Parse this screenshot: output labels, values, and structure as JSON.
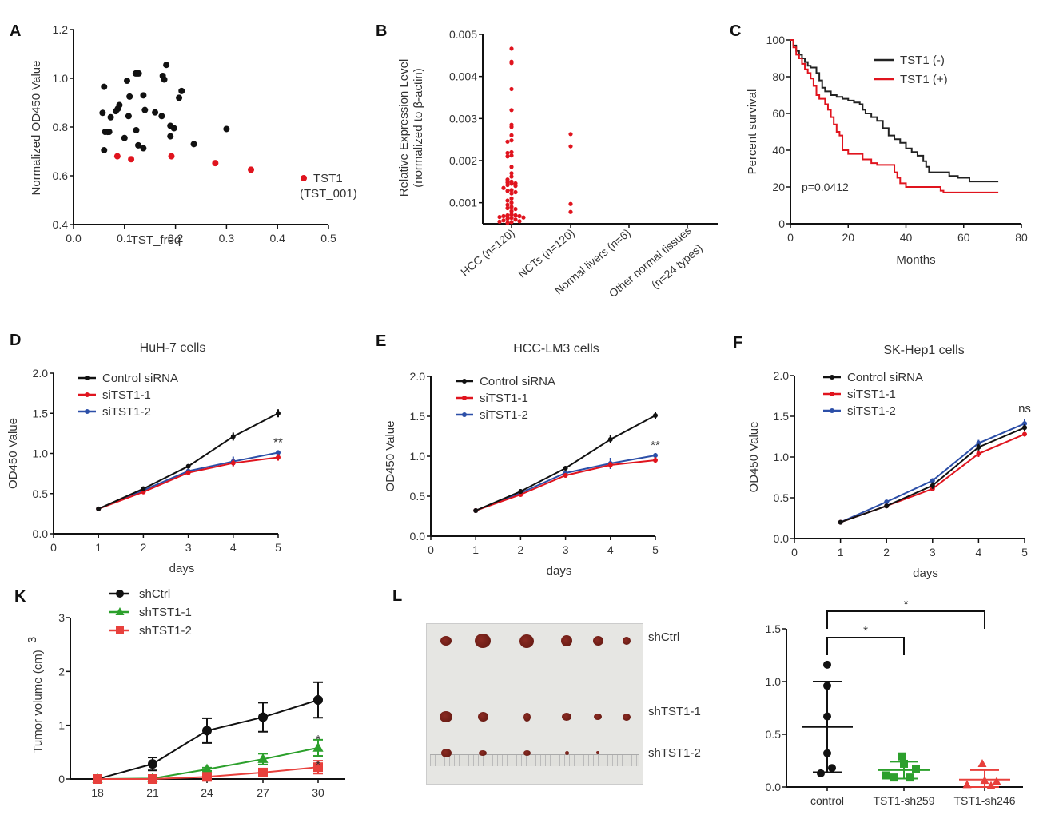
{
  "panels": {
    "A": "A",
    "B": "B",
    "C": "C",
    "D": "D",
    "E": "E",
    "F": "F",
    "K": "K",
    "L": "L"
  },
  "colors": {
    "black": "#111111",
    "red": "#e0141e",
    "blue": "#2c4fa8",
    "green": "#2ca02c",
    "lightred": "#e8403c"
  },
  "photo_labels": [
    "shCtrl",
    "shTST1-1",
    "shTST1-2"
  ],
  "chart_data": [
    {
      "id": "A",
      "type": "scatter",
      "xlabel": "TST_freq",
      "ylabel": "Normalized OD450 Value",
      "xlim": [
        0.0,
        0.5
      ],
      "ylim": [
        0.4,
        1.2
      ],
      "xticks": [
        "0.0",
        "0.1",
        "0.2",
        "0.3",
        "0.4",
        "0.5"
      ],
      "yticks": [
        "0.4",
        "0.6",
        "0.8",
        "1.0",
        "1.2"
      ],
      "legend": {
        "label": "TST1",
        "sublabel": "(TST_001)",
        "position": "right"
      },
      "series": [
        {
          "name": "other",
          "color": "#111111",
          "points": [
            [
              0.06,
              0.965
            ],
            [
              0.057,
              0.858
            ],
            [
              0.062,
              0.78
            ],
            [
              0.067,
              0.78
            ],
            [
              0.07,
              0.78
            ],
            [
              0.073,
              0.84
            ],
            [
              0.06,
              0.705
            ],
            [
              0.083,
              0.865
            ],
            [
              0.087,
              0.875
            ],
            [
              0.09,
              0.89
            ],
            [
              0.1,
              0.755
            ],
            [
              0.105,
              0.99
            ],
            [
              0.108,
              0.845
            ],
            [
              0.11,
              0.925
            ],
            [
              0.122,
              1.02
            ],
            [
              0.125,
              1.02
            ],
            [
              0.128,
              1.02
            ],
            [
              0.123,
              0.787
            ],
            [
              0.127,
              0.725
            ],
            [
              0.137,
              0.713
            ],
            [
              0.137,
              0.93
            ],
            [
              0.14,
              0.87
            ],
            [
              0.16,
              0.86
            ],
            [
              0.173,
              0.845
            ],
            [
              0.175,
              1.01
            ],
            [
              0.178,
              0.995
            ],
            [
              0.182,
              1.055
            ],
            [
              0.19,
              0.805
            ],
            [
              0.19,
              0.762
            ],
            [
              0.197,
              0.795
            ],
            [
              0.207,
              0.92
            ],
            [
              0.212,
              0.948
            ],
            [
              0.236,
              0.73
            ],
            [
              0.3,
              0.792
            ]
          ]
        },
        {
          "name": "TST1",
          "color": "#e0141e",
          "points": [
            [
              0.086,
              0.68
            ],
            [
              0.113,
              0.668
            ],
            [
              0.192,
              0.68
            ],
            [
              0.278,
              0.652
            ],
            [
              0.348,
              0.625
            ]
          ]
        }
      ]
    },
    {
      "id": "B",
      "type": "scatter",
      "ylabel": "Relative Expression Level",
      "ylabel2": "(normalized to β-actin)",
      "ylim": [
        0.0005,
        0.005
      ],
      "yticks": [
        "0.001",
        "0.002",
        "0.003",
        "0.004",
        "0.005"
      ],
      "categories": [
        "HCC (n=120)",
        "NCTs (n=120)",
        "Normal livers (n=6)",
        "Other normal tissues",
        "(n=24 types)"
      ],
      "series": [
        {
          "name": "HCC (n=120)",
          "color": "#e0141e",
          "values": [
            0.00466,
            0.00435,
            0.00432,
            0.0037,
            0.0032,
            0.00285,
            0.0028,
            0.0026,
            0.00248,
            0.00245,
            0.0022,
            0.00218,
            0.00212,
            0.0021,
            0.00185,
            0.0017,
            0.00162,
            0.00155,
            0.0015,
            0.00148,
            0.00146,
            0.00145,
            0.00142,
            0.0014,
            0.00135,
            0.0013,
            0.00128,
            0.00125,
            0.00122,
            0.0011,
            0.00105,
            0.001,
            0.00095,
            0.0009,
            0.00087,
            0.00085,
            0.0008,
            0.00072,
            0.0007,
            0.0007,
            0.00068,
            0.00068,
            0.00066,
            0.00065,
            0.00064,
            0.00062,
            0.0006,
            0.00058,
            0.00056,
            0.00055,
            0.00054,
            0.00052
          ]
        },
        {
          "name": "NCTs (n=120)",
          "color": "#e0141e",
          "values": [
            0.00263,
            0.00234,
            0.00097,
            0.00078
          ]
        },
        {
          "name": "Normal livers (n=6)",
          "color": "#e0141e",
          "values": []
        },
        {
          "name": "Other normal tissues (n=24 types)",
          "color": "#e0141e",
          "values": []
        }
      ]
    },
    {
      "id": "C",
      "type": "line",
      "xlabel": "Months",
      "ylabel": "Percent survival",
      "xlim": [
        0,
        80
      ],
      "ylim": [
        0,
        100
      ],
      "xticks": [
        "0",
        "20",
        "40",
        "60",
        "80"
      ],
      "yticks": [
        "0",
        "20",
        "40",
        "60",
        "80",
        "100"
      ],
      "annotation": "p=0.0412",
      "legend_position": "top-right",
      "series": [
        {
          "name": "TST1  (-)",
          "color": "#222222",
          "x": [
            0,
            1,
            2,
            3,
            4,
            5,
            6,
            7,
            8,
            9,
            10,
            11,
            12,
            14,
            16,
            18,
            20,
            22,
            24,
            25,
            26,
            28,
            30,
            32,
            34,
            36,
            38,
            40,
            42,
            44,
            46,
            47,
            48,
            50,
            52,
            55,
            58,
            62,
            72
          ],
          "y": [
            100,
            97,
            94,
            92,
            90,
            88,
            86,
            85,
            85,
            82,
            78,
            74,
            72,
            70,
            69,
            68,
            67,
            66,
            65,
            62,
            60,
            58,
            56,
            52,
            48,
            46,
            44,
            41,
            39,
            37,
            34,
            31,
            28,
            28,
            28,
            26,
            25,
            23,
            23
          ]
        },
        {
          "name": "TST1  (+)",
          "color": "#e0141e",
          "x": [
            0,
            1,
            2,
            3,
            4,
            5,
            6,
            7,
            8,
            9,
            10,
            12,
            13,
            14,
            15,
            16,
            17,
            18,
            20,
            24,
            25,
            28,
            30,
            35,
            36,
            37,
            38,
            40,
            45,
            50,
            52,
            53,
            60,
            72
          ],
          "y": [
            100,
            96,
            92,
            90,
            87,
            84,
            82,
            79,
            75,
            70,
            68,
            65,
            62,
            58,
            54,
            50,
            48,
            40,
            38,
            38,
            35,
            33,
            32,
            32,
            28,
            25,
            22,
            20,
            20,
            20,
            18,
            17,
            17,
            17
          ]
        }
      ]
    },
    {
      "id": "D",
      "type": "line",
      "title": "HuH-7 cells",
      "xlabel": "days",
      "ylabel": "OD450 Value",
      "xlim": [
        0,
        5
      ],
      "ylim": [
        0,
        2.0
      ],
      "xticks": [
        "0",
        "1",
        "2",
        "3",
        "4",
        "5"
      ],
      "yticks": [
        "0.0",
        "0.5",
        "1.0",
        "1.5",
        "2.0"
      ],
      "annotation": "**",
      "x": [
        1,
        2,
        3,
        4,
        5
      ],
      "series": [
        {
          "name": "Control siRNA",
          "color": "#111111",
          "values": [
            0.31,
            0.56,
            0.84,
            1.21,
            1.5
          ],
          "err": [
            0.01,
            0.03,
            0.02,
            0.05,
            0.05
          ]
        },
        {
          "name": "siTST1-1",
          "color": "#e0141e",
          "values": [
            0.31,
            0.52,
            0.76,
            0.88,
            0.95
          ],
          "err": [
            0.01,
            0.02,
            0.03,
            0.04,
            0.04
          ]
        },
        {
          "name": "siTST1-2",
          "color": "#2c4fa8",
          "values": [
            0.31,
            0.54,
            0.78,
            0.9,
            1.01
          ],
          "err": [
            0.01,
            0.02,
            0.02,
            0.06,
            0.03
          ]
        }
      ]
    },
    {
      "id": "E",
      "type": "line",
      "title": "HCC-LM3 cells",
      "xlabel": "days",
      "ylabel": "OD450 Value",
      "xlim": [
        0,
        5
      ],
      "ylim": [
        0,
        2.0
      ],
      "xticks": [
        "0",
        "1",
        "2",
        "3",
        "4",
        "5"
      ],
      "yticks": [
        "0.0",
        "0.5",
        "1.0",
        "1.5",
        "2.0"
      ],
      "annotation": "**",
      "x": [
        1,
        2,
        3,
        4,
        5
      ],
      "series": [
        {
          "name": "Control siRNA",
          "color": "#111111",
          "values": [
            0.32,
            0.56,
            0.85,
            1.21,
            1.51
          ],
          "err": [
            0.01,
            0.03,
            0.02,
            0.05,
            0.05
          ]
        },
        {
          "name": "siTST1-1",
          "color": "#e0141e",
          "values": [
            0.32,
            0.52,
            0.76,
            0.89,
            0.95
          ],
          "err": [
            0.01,
            0.02,
            0.03,
            0.04,
            0.04
          ]
        },
        {
          "name": "siTST1-2",
          "color": "#2c4fa8",
          "values": [
            0.32,
            0.54,
            0.79,
            0.91,
            1.01
          ],
          "err": [
            0.01,
            0.02,
            0.02,
            0.07,
            0.03
          ]
        }
      ]
    },
    {
      "id": "F",
      "type": "line",
      "title": "SK-Hep1 cells",
      "xlabel": "days",
      "ylabel": "OD450 Value",
      "xlim": [
        0,
        5
      ],
      "ylim": [
        0,
        2.0
      ],
      "xticks": [
        "0",
        "1",
        "2",
        "3",
        "4",
        "5"
      ],
      "yticks": [
        "0.0",
        "0.5",
        "1.0",
        "1.5",
        "2.0"
      ],
      "annotation": "ns",
      "x": [
        1,
        2,
        3,
        4,
        5
      ],
      "series": [
        {
          "name": "Control siRNA",
          "color": "#111111",
          "values": [
            0.2,
            0.4,
            0.65,
            1.12,
            1.36
          ],
          "err": [
            0.01,
            0.02,
            0.04,
            0.04,
            0.04
          ]
        },
        {
          "name": "siTST1-1",
          "color": "#e0141e",
          "values": [
            0.2,
            0.4,
            0.61,
            1.04,
            1.28
          ],
          "err": [
            0.01,
            0.02,
            0.03,
            0.04,
            0.03
          ]
        },
        {
          "name": "siTST1-2",
          "color": "#2c4fa8",
          "values": [
            0.2,
            0.45,
            0.71,
            1.17,
            1.41
          ],
          "err": [
            0.01,
            0.02,
            0.03,
            0.04,
            0.06
          ]
        }
      ]
    },
    {
      "id": "K",
      "type": "line",
      "xlabel": "",
      "ylabel": "Tumor volume (cm)",
      "ylabel_sup": "3",
      "ylim": [
        0,
        3
      ],
      "xticks": [
        "18",
        "21",
        "24",
        "27",
        "30"
      ],
      "yticks": [
        "0",
        "1",
        "2",
        "3"
      ],
      "annotations": [
        "*",
        "*"
      ],
      "x": [
        18,
        21,
        24,
        27,
        30
      ],
      "series": [
        {
          "name": "shCtrl",
          "color": "#111111",
          "marker": "circle",
          "values": [
            0.0,
            0.28,
            0.9,
            1.15,
            1.47
          ],
          "err": [
            0.02,
            0.12,
            0.23,
            0.27,
            0.33
          ]
        },
        {
          "name": "shTST1-1",
          "color": "#2ca02c",
          "marker": "triangle",
          "values": [
            0.0,
            0.01,
            0.18,
            0.37,
            0.58
          ],
          "err": [
            0.0,
            0.01,
            0.03,
            0.1,
            0.15
          ]
        },
        {
          "name": "shTST1-2",
          "color": "#e8403c",
          "marker": "square",
          "values": [
            0.0,
            0.0,
            0.04,
            0.12,
            0.22
          ],
          "err": [
            0.0,
            0.0,
            0.02,
            0.05,
            0.12
          ]
        }
      ]
    },
    {
      "id": "L-right",
      "type": "scatter",
      "ylim": [
        0,
        1.5
      ],
      "yticks": [
        "0.0",
        "0.5",
        "1.0",
        "1.5"
      ],
      "categories": [
        "control",
        "TST1-sh259",
        "TST1-sh246"
      ],
      "brackets": [
        {
          "from": 0,
          "to": 1,
          "label": "*"
        },
        {
          "from": 0,
          "to": 2,
          "label": "*"
        }
      ],
      "series": [
        {
          "name": "control",
          "color": "#111111",
          "marker": "circle",
          "values": [
            1.16,
            0.96,
            0.67,
            0.32,
            0.18,
            0.13
          ],
          "mean": 0.57,
          "sd": 0.43
        },
        {
          "name": "TST1-sh259",
          "color": "#2ca02c",
          "marker": "square",
          "values": [
            0.29,
            0.22,
            0.17,
            0.11,
            0.09,
            0.09
          ],
          "mean": 0.16,
          "sd": 0.08
        },
        {
          "name": "TST1-sh246",
          "color": "#e8403c",
          "marker": "triangle",
          "values": [
            0.22,
            0.06,
            0.05,
            0.02,
            0.01
          ],
          "mean": 0.07,
          "sd": 0.09
        }
      ]
    }
  ]
}
